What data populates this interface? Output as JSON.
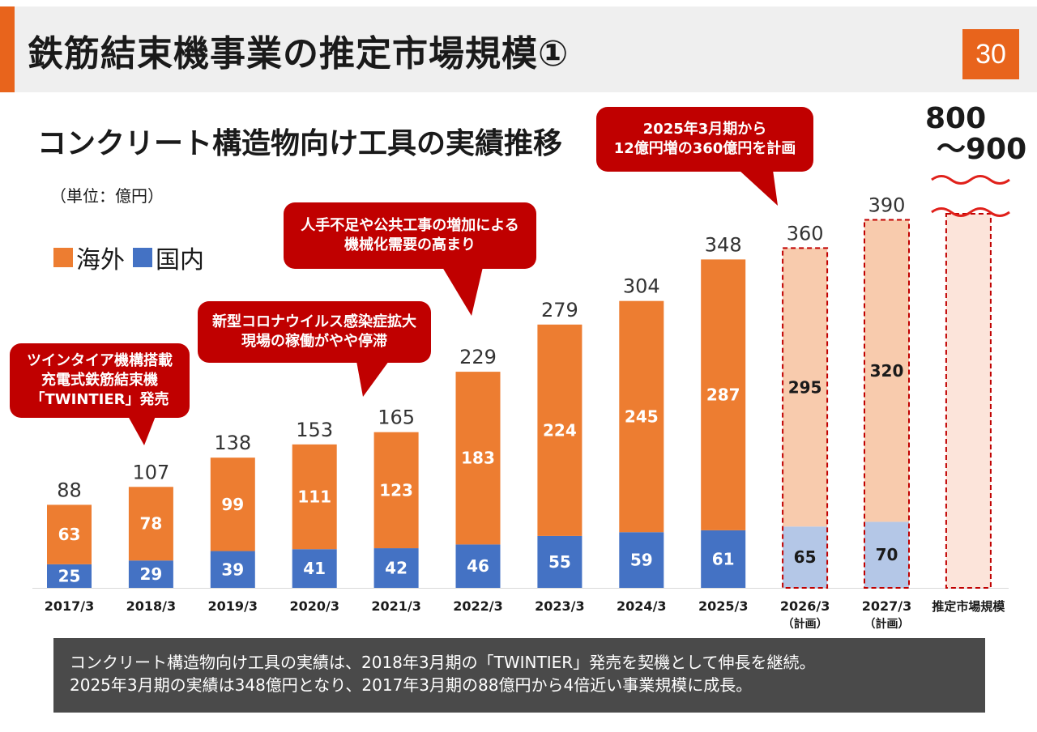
{
  "header": {
    "title": "鉄筋結束機事業の推定市場規模①",
    "page_number": "30"
  },
  "subtitle": "コンクリート構造物向け工具の実績推移",
  "unit": "（単位：億円）",
  "colors": {
    "accent": "#e8641c",
    "overseas": "#ed7d31",
    "domestic": "#4472c4",
    "overseas_plan": "#f8cbad",
    "domestic_plan": "#b4c7e7",
    "market": "#fce4da",
    "callout": "#c00000",
    "dashed": "#c00000"
  },
  "callouts": [
    {
      "lines": [
        "ツインタイア機構搭載",
        "充電式鉄筋結束機",
        "「TWINTIER」発売"
      ]
    },
    {
      "lines": [
        "新型コロナウイルス感染症拡大",
        "現場の稼働がやや停滞"
      ]
    },
    {
      "lines": [
        "人手不足や公共工事の増加による",
        "機械化需要の高まり"
      ]
    },
    {
      "lines": [
        "2025年3月期から",
        "12億円増の360億円を計画"
      ]
    }
  ],
  "market_range": {
    "line1": "800",
    "line2": "～900"
  },
  "note": {
    "line1": "コンクリート構造物向け工具の実績は、2018年3月期の「TWINTIER」発売を契機として伸長を継続。",
    "line2": "2025年3月期の実績は348億円となり、2017年3月期の88億円から4倍近い事業規模に成長。"
  },
  "chart_data": {
    "type": "bar",
    "stacked": true,
    "categories": [
      "2017/3",
      "2018/3",
      "2019/3",
      "2020/3",
      "2021/3",
      "2022/3",
      "2023/3",
      "2024/3",
      "2025/3",
      "2026/3",
      "2027/3",
      "推定市場規模"
    ],
    "category_sublabels": [
      "",
      "",
      "",
      "",
      "",
      "",
      "",
      "",
      "",
      "（計画）",
      "（計画）",
      ""
    ],
    "series": [
      {
        "name": "国内",
        "values": [
          25,
          29,
          39,
          41,
          42,
          46,
          55,
          59,
          61,
          65,
          70,
          null
        ]
      },
      {
        "name": "海外",
        "values": [
          63,
          78,
          99,
          111,
          123,
          183,
          224,
          245,
          287,
          295,
          320,
          null
        ]
      }
    ],
    "totals": [
      88,
      107,
      138,
      153,
      165,
      229,
      279,
      304,
      348,
      360,
      390,
      null
    ],
    "planned": [
      false,
      false,
      false,
      false,
      false,
      false,
      false,
      false,
      false,
      true,
      true,
      false
    ],
    "legend": [
      {
        "label": "海外",
        "color": "#ed7d31"
      },
      {
        "label": "国内",
        "color": "#4472c4"
      }
    ],
    "ylim": [
      0,
      400
    ],
    "legend_position": "top-left",
    "grid": false
  }
}
